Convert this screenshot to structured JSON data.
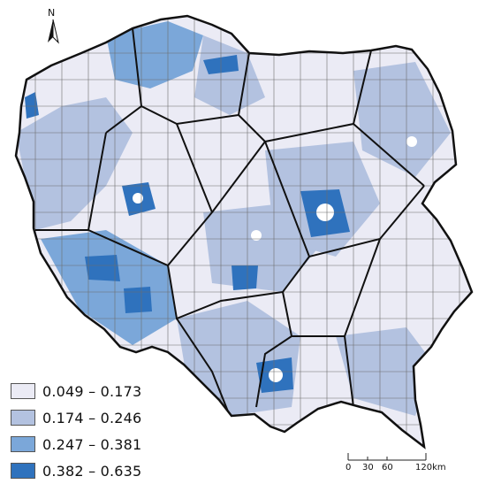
{
  "legend": {
    "items": [
      {
        "label": "0.049 – 0.173",
        "color": "#ebebf5"
      },
      {
        "label": "0.174 – 0.246",
        "color": "#b3c2e0"
      },
      {
        "label": "0.247 – 0.381",
        "color": "#7ba7d9"
      },
      {
        "label": "0.382 – 0.635",
        "color": "#2f72bd"
      }
    ]
  },
  "north_arrow": {
    "letter": "N",
    "icon": "north-arrow-icon"
  },
  "scale_bar": {
    "labels": [
      "0",
      "30",
      "60",
      "120km"
    ]
  },
  "map": {
    "country": "Poland",
    "border_color": "#111111",
    "district_line_color": "#6d6d6d"
  }
}
